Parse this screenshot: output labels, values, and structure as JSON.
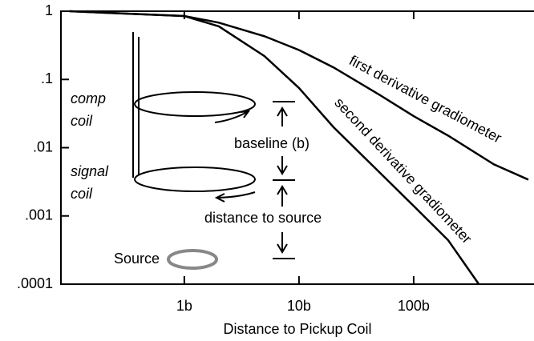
{
  "chart_data": {
    "type": "line",
    "x_label": "Distance to Pickup Coil",
    "xscale": "log",
    "yscale": "log",
    "xlim": [
      0.084,
      1120
    ],
    "ylim": [
      0.0001,
      1
    ],
    "xticks": [
      {
        "value": 1,
        "label": "1b"
      },
      {
        "value": 10,
        "label": "10b"
      },
      {
        "value": 100,
        "label": "100b"
      }
    ],
    "yticks": [
      {
        "value": 1,
        "label": "1"
      },
      {
        "value": 0.1,
        "label": ".1"
      },
      {
        "value": 0.01,
        "label": ".01"
      },
      {
        "value": 0.001,
        "label": ".001"
      },
      {
        "value": 0.0001,
        "label": ".0001"
      }
    ],
    "series": [
      {
        "name": "first derivative gradiometer",
        "color": "#000000",
        "x": [
          0.1,
          1,
          2,
          5,
          10,
          20,
          50,
          100,
          200,
          500,
          1000
        ],
        "values": [
          1,
          0.85,
          0.68,
          0.43,
          0.27,
          0.15,
          0.06,
          0.029,
          0.015,
          0.0057,
          0.0034
        ]
      },
      {
        "name": "second derivative gradiometer",
        "color": "#000000",
        "x": [
          0.1,
          1,
          2,
          5,
          10,
          20,
          50,
          100,
          200,
          370
        ],
        "values": [
          1,
          0.85,
          0.6,
          0.22,
          0.075,
          0.02,
          0.0044,
          0.0014,
          0.00044,
          0.0001
        ]
      }
    ],
    "annotations": {
      "comp": "comp",
      "comp_coil": "coil",
      "signal": "signal",
      "signal_coil": "coil",
      "baseline": "baseline (b)",
      "distance": "distance to source",
      "source": "Source"
    }
  }
}
